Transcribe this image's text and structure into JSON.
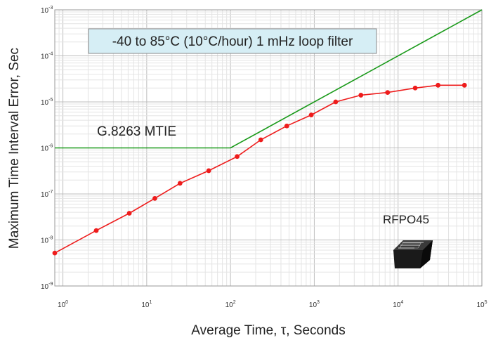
{
  "chart_data": {
    "type": "line",
    "title": "-40 to 85°C (10°C/hour) 1 mHz loop filter",
    "xlabel": "Average Time, τ, Seconds",
    "ylabel": "Maximum Time Interval Error, Sec",
    "x_scale": "log",
    "y_scale": "log",
    "xlim": [
      0.8,
      100000
    ],
    "ylim": [
      1e-09,
      0.001
    ],
    "grid": true,
    "x_ticks": [
      {
        "value": 1,
        "base": "10",
        "exp": "0"
      },
      {
        "value": 10,
        "base": "10",
        "exp": "1"
      },
      {
        "value": 100,
        "base": "10",
        "exp": "2"
      },
      {
        "value": 1000,
        "base": "10",
        "exp": "3"
      },
      {
        "value": 10000,
        "base": "10",
        "exp": "4"
      },
      {
        "value": 100000,
        "base": "10",
        "exp": "5"
      }
    ],
    "y_ticks": [
      {
        "value": 1e-09,
        "base": "10",
        "exp": "-9"
      },
      {
        "value": 1e-08,
        "base": "10",
        "exp": "-8"
      },
      {
        "value": 1e-07,
        "base": "10",
        "exp": "-7"
      },
      {
        "value": 1e-06,
        "base": "10",
        "exp": "-6"
      },
      {
        "value": 1e-05,
        "base": "10",
        "exp": "-5"
      },
      {
        "value": 0.0001,
        "base": "10",
        "exp": "-4"
      },
      {
        "value": 0.001,
        "base": "10",
        "exp": "-3"
      }
    ],
    "series": [
      {
        "name": "G.8263 MTIE",
        "color": "#1a9a1a",
        "markers": false,
        "x": [
          0.8,
          100,
          100000
        ],
        "y": [
          1e-06,
          1e-06,
          0.001
        ]
      },
      {
        "name": "RFPO45",
        "color": "#ee1c1c",
        "markers": true,
        "x": [
          0.8,
          2.5,
          6.2,
          12.5,
          25,
          55,
          120,
          230,
          470,
          920,
          1800,
          3600,
          7500,
          16000,
          30000,
          62000
        ],
        "y": [
          5.2e-09,
          1.6e-08,
          3.8e-08,
          8e-08,
          1.7e-07,
          3.2e-07,
          6.5e-07,
          1.5e-06,
          3e-06,
          5.2e-06,
          1e-05,
          1.4e-05,
          1.6e-05,
          2e-05,
          2.3e-05,
          2.3e-05
        ]
      }
    ],
    "annotations": {
      "mtie_label": "G.8263 MTIE",
      "device_label": "RFPO45",
      "device_icon": "oscillator-chip-icon"
    }
  }
}
